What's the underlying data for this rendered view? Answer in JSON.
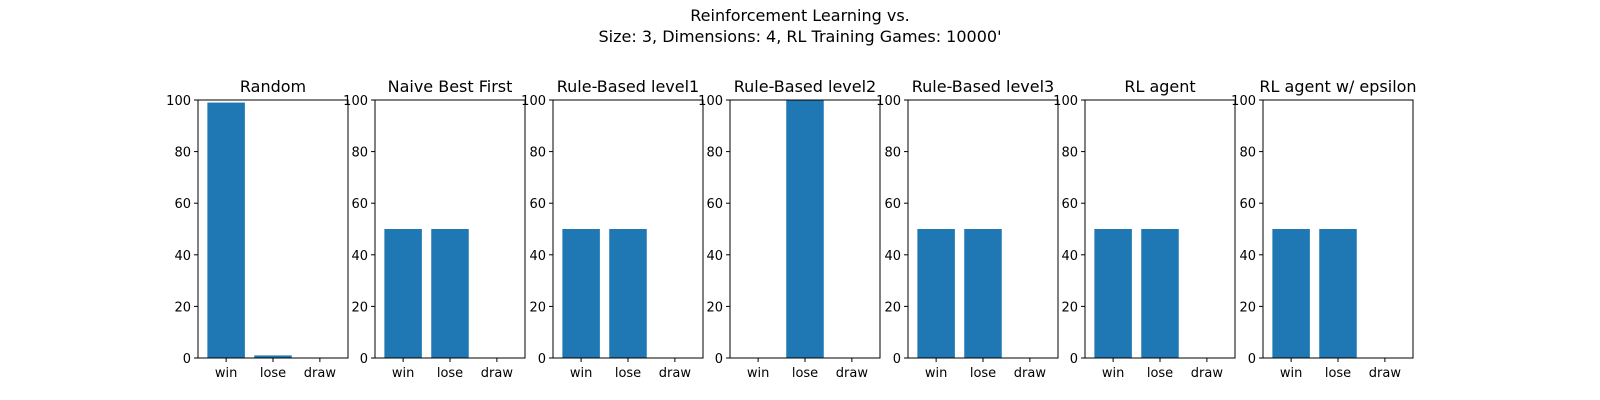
{
  "figure": {
    "title_line1": "Reinforcement Learning vs.",
    "title_line2": "Size: 3, Dimensions: 4, RL Training Games: 10000'",
    "bar_color": "#1f77b4"
  },
  "chart_data": [
    {
      "type": "bar",
      "title": "Random",
      "categories": [
        "win",
        "lose",
        "draw"
      ],
      "values": [
        99,
        1,
        0
      ],
      "ylim": [
        0,
        100
      ],
      "yticks": [
        0,
        20,
        40,
        60,
        80,
        100
      ],
      "xlabel": "",
      "ylabel": "",
      "grid": false
    },
    {
      "type": "bar",
      "title": "Naive Best First",
      "categories": [
        "win",
        "lose",
        "draw"
      ],
      "values": [
        50,
        50,
        0
      ],
      "ylim": [
        0,
        100
      ],
      "yticks": [
        0,
        20,
        40,
        60,
        80,
        100
      ],
      "xlabel": "",
      "ylabel": "",
      "grid": false
    },
    {
      "type": "bar",
      "title": "Rule-Based level1",
      "categories": [
        "win",
        "lose",
        "draw"
      ],
      "values": [
        50,
        50,
        0
      ],
      "ylim": [
        0,
        100
      ],
      "yticks": [
        0,
        20,
        40,
        60,
        80,
        100
      ],
      "xlabel": "",
      "ylabel": "",
      "grid": false
    },
    {
      "type": "bar",
      "title": "Rule-Based level2",
      "categories": [
        "win",
        "lose",
        "draw"
      ],
      "values": [
        0,
        100,
        0
      ],
      "ylim": [
        0,
        100
      ],
      "yticks": [
        0,
        20,
        40,
        60,
        80,
        100
      ],
      "xlabel": "",
      "ylabel": "",
      "grid": false
    },
    {
      "type": "bar",
      "title": "Rule-Based level3",
      "categories": [
        "win",
        "lose",
        "draw"
      ],
      "values": [
        50,
        50,
        0
      ],
      "ylim": [
        0,
        100
      ],
      "yticks": [
        0,
        20,
        40,
        60,
        80,
        100
      ],
      "xlabel": "",
      "ylabel": "",
      "grid": false
    },
    {
      "type": "bar",
      "title": "RL agent",
      "categories": [
        "win",
        "lose",
        "draw"
      ],
      "values": [
        50,
        50,
        0
      ],
      "ylim": [
        0,
        100
      ],
      "yticks": [
        0,
        20,
        40,
        60,
        80,
        100
      ],
      "xlabel": "",
      "ylabel": "",
      "grid": false
    },
    {
      "type": "bar",
      "title": "RL agent w/ epsilon",
      "categories": [
        "win",
        "lose",
        "draw"
      ],
      "values": [
        50,
        50,
        0
      ],
      "ylim": [
        0,
        100
      ],
      "yticks": [
        0,
        20,
        40,
        60,
        80,
        100
      ],
      "xlabel": "",
      "ylabel": "",
      "grid": false
    }
  ]
}
